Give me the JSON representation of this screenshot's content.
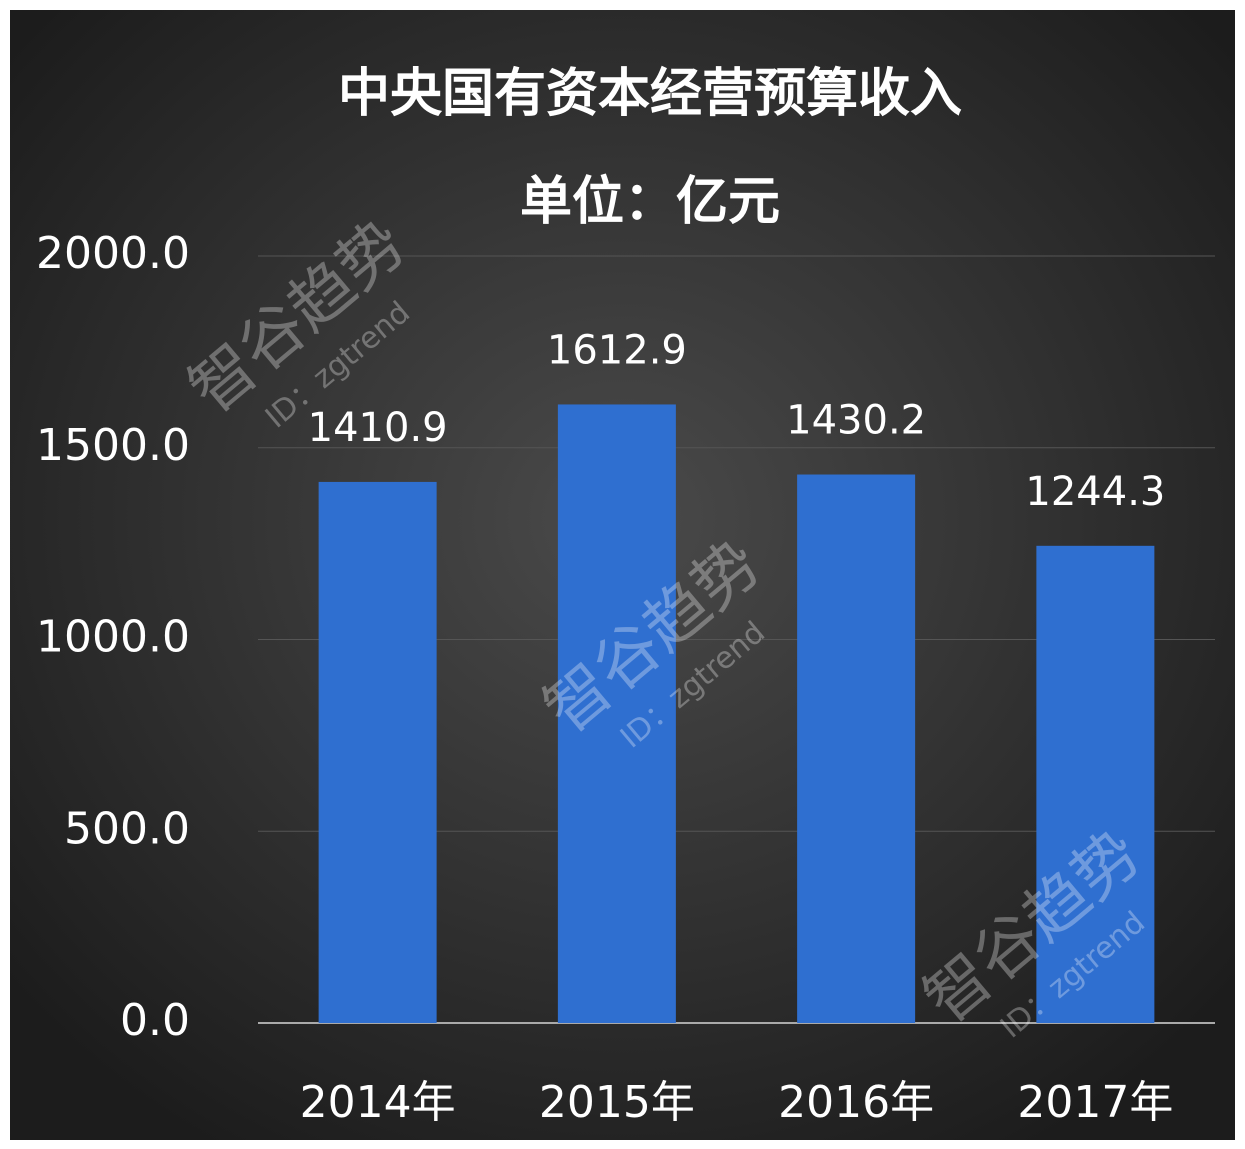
{
  "chart_data": {
    "type": "bar",
    "title": "中央国有资本经营预算收入",
    "subtitle": "单位：亿元",
    "categories": [
      "2014年",
      "2015年",
      "2016年",
      "2017年"
    ],
    "values": [
      1410.9,
      1612.9,
      1430.2,
      1244.3
    ],
    "color": "#2f6fd0",
    "ylim": [
      0,
      2000
    ],
    "yticks": [
      {
        "value": 0,
        "label": "0.0"
      },
      {
        "value": 500,
        "label": "500.0"
      },
      {
        "value": 1000,
        "label": "1000.0"
      },
      {
        "value": 1500,
        "label": "1500.0"
      },
      {
        "value": 2000,
        "label": "2000.0"
      }
    ],
    "grid": true,
    "watermark": {
      "name": "智谷趋势",
      "id": "ID：zgtrend"
    }
  }
}
